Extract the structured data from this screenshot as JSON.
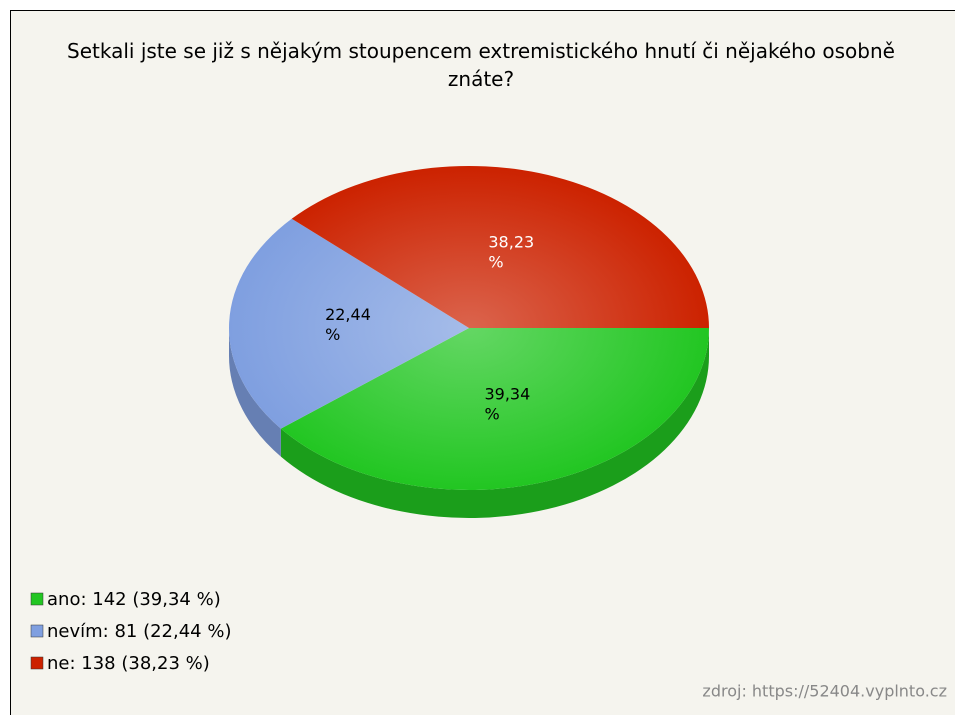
{
  "chart_data": {
    "type": "pie",
    "title": "Setkali jste se již s nějakým stoupencem extremistického hnutí či nějakého osobně znáte?",
    "categories": [
      "ano: 142 (39,34 %)",
      "nevím: 81 (22,44 %)",
      "ne: 138 (38,23 %)"
    ],
    "values": [
      39.34,
      22.44,
      38.23
    ],
    "value_labels": [
      "39,34 %",
      "22,44 %",
      "38,23 %"
    ],
    "colors": [
      "#22c622",
      "#7f9fe0",
      "#cc2200"
    ],
    "source": "zdroj: https://52404.vyplnto.cz",
    "legend": "bottom-left"
  }
}
